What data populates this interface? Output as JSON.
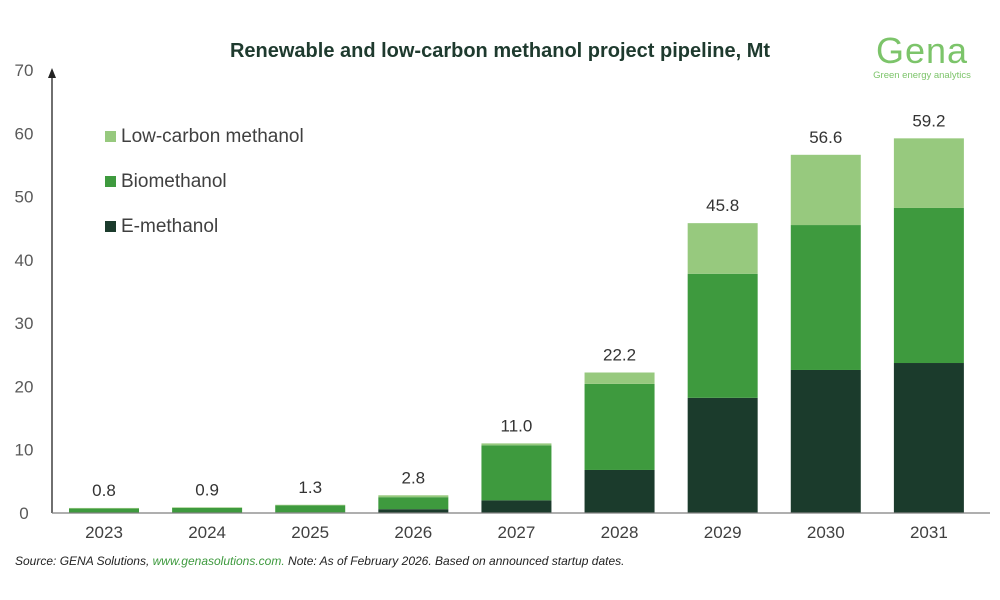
{
  "header": {
    "title": "Renewable and low-carbon methanol project pipeline, Mt"
  },
  "logo": {
    "name": "Gena",
    "tagline": "Green energy analytics"
  },
  "footer": {
    "source_prefix": "Source: GENA Solutions, ",
    "source_link": "www.genasolutions.com.",
    "note": " Note: As of February 2026. Based on announced startup dates."
  },
  "chart_data": {
    "type": "bar",
    "stacked": true,
    "title": "Renewable and low-carbon methanol project pipeline, Mt",
    "xlabel": "",
    "ylabel": "",
    "ylim": [
      0,
      70
    ],
    "yticks": [
      0,
      10,
      20,
      30,
      40,
      50,
      60,
      70
    ],
    "grid": false,
    "legend_position": "top-left",
    "categories": [
      "2023",
      "2024",
      "2025",
      "2026",
      "2027",
      "2028",
      "2029",
      "2030",
      "2031"
    ],
    "series": [
      {
        "name": "E-methanol",
        "color": "#1b3b2c",
        "values": [
          0.0,
          0.0,
          0.1,
          0.6,
          2.0,
          6.8,
          18.2,
          22.6,
          23.7
        ]
      },
      {
        "name": "Biomethanol",
        "color": "#3e9a3e",
        "values": [
          0.7,
          0.8,
          1.1,
          1.9,
          8.7,
          13.6,
          19.6,
          22.9,
          24.5
        ]
      },
      {
        "name": "Low-carbon methanol",
        "color": "#97c97e",
        "values": [
          0.1,
          0.1,
          0.1,
          0.3,
          0.3,
          1.8,
          8.0,
          11.1,
          11.0
        ]
      }
    ],
    "totals": [
      "0.8",
      "0.9",
      "1.3",
      "2.8",
      "11.0",
      "22.2",
      "45.8",
      "56.6",
      "59.2"
    ],
    "legend_order": [
      "Low-carbon methanol",
      "Biomethanol",
      "E-methanol"
    ]
  }
}
